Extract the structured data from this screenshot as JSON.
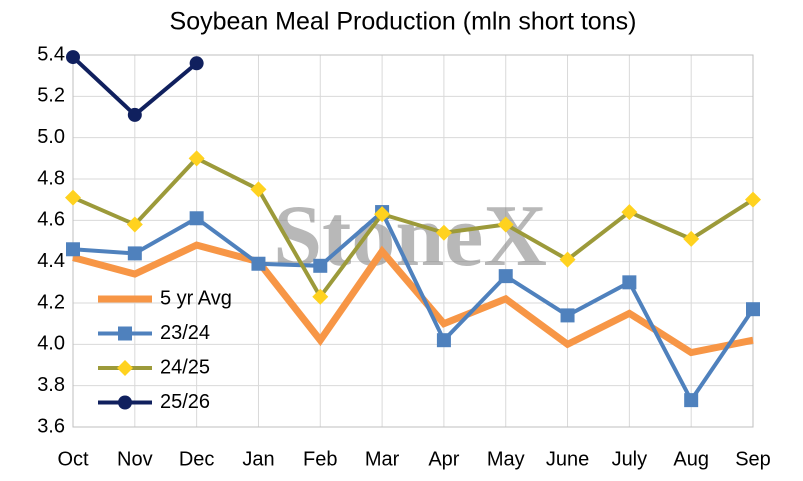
{
  "chart_data": {
    "type": "line",
    "title": "Soybean Meal Production (mln short tons)",
    "watermark": "StoneX",
    "categories": [
      "Oct",
      "Nov",
      "Dec",
      "Jan",
      "Feb",
      "Mar",
      "Apr",
      "May",
      "June",
      "July",
      "Aug",
      "Sep"
    ],
    "series": [
      {
        "name": "5 yr Avg",
        "color": "#f79646",
        "marker": "none",
        "values": [
          4.42,
          4.34,
          4.48,
          4.4,
          4.02,
          4.45,
          4.1,
          4.22,
          4.0,
          4.15,
          3.96,
          4.02
        ]
      },
      {
        "name": "23/24",
        "color": "#4f81bd",
        "marker": "square",
        "marker_color": "#4f81bd",
        "values": [
          4.46,
          4.44,
          4.61,
          4.39,
          4.38,
          4.64,
          4.02,
          4.33,
          4.14,
          4.3,
          3.73,
          4.17
        ]
      },
      {
        "name": "24/25",
        "color": "#9c9a3a",
        "marker": "diamond",
        "marker_color": "#ffd21f",
        "values": [
          4.71,
          4.58,
          4.9,
          4.75,
          4.23,
          4.63,
          4.54,
          4.58,
          4.41,
          4.64,
          4.51,
          4.7
        ]
      },
      {
        "name": "25/26",
        "color": "#10205e",
        "marker": "circle",
        "marker_color": "#10205e",
        "values": [
          5.39,
          5.11,
          5.36,
          null,
          null,
          null,
          null,
          null,
          null,
          null,
          null,
          null
        ]
      }
    ],
    "ylim": [
      3.6,
      5.4
    ],
    "yticks": [
      3.6,
      3.8,
      {
        "value": 4,
        "label": "4.0"
      },
      4.2,
      4.4,
      4.6,
      4.8,
      {
        "value": 5,
        "label": "5.0"
      },
      5.2,
      5.4
    ],
    "grid": true,
    "legend": "left"
  }
}
